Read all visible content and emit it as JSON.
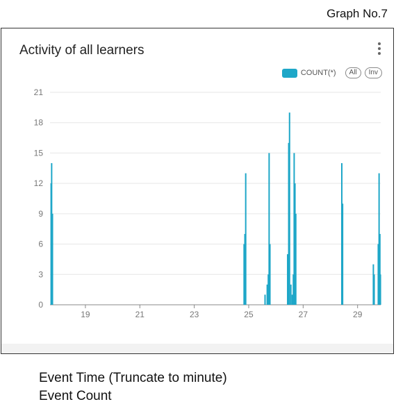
{
  "graph_number": "Graph No.7",
  "panel": {
    "title": "Activity of all learners"
  },
  "legend": {
    "series_label": "COUNT(*)",
    "all_label": "All",
    "inv_label": "Inv"
  },
  "caption": {
    "line1": "Event Time (Truncate to minute)",
    "line2": "Event Count"
  },
  "colors": {
    "bar": "#1ea7c8",
    "grid": "#e6e6e6",
    "axis": "#888888",
    "tick_text": "#777777"
  },
  "chart_data": {
    "type": "bar",
    "title": "Activity of all learners",
    "xlabel": "",
    "ylabel": "",
    "xlim": [
      17.7,
      29.85
    ],
    "ylim": [
      0,
      21
    ],
    "yticks": [
      0,
      3,
      6,
      9,
      12,
      15,
      18,
      21
    ],
    "xticks": [
      19,
      21,
      23,
      25,
      27,
      29
    ],
    "grid": true,
    "legend_position": "top-right",
    "series": [
      {
        "name": "COUNT(*)",
        "points": [
          [
            17.74,
            12
          ],
          [
            17.76,
            14
          ],
          [
            17.79,
            9
          ],
          [
            24.83,
            6
          ],
          [
            24.86,
            7
          ],
          [
            24.89,
            13
          ],
          [
            25.6,
            1
          ],
          [
            25.68,
            2
          ],
          [
            25.72,
            3
          ],
          [
            25.75,
            15
          ],
          [
            25.78,
            6
          ],
          [
            26.43,
            5
          ],
          [
            26.47,
            16
          ],
          [
            26.5,
            19
          ],
          [
            26.55,
            2
          ],
          [
            26.6,
            1
          ],
          [
            26.64,
            3
          ],
          [
            26.67,
            15
          ],
          [
            26.7,
            12
          ],
          [
            26.73,
            9
          ],
          [
            28.42,
            14
          ],
          [
            28.45,
            10
          ],
          [
            29.58,
            4
          ],
          [
            29.61,
            3
          ],
          [
            29.76,
            6
          ],
          [
            29.79,
            13
          ],
          [
            29.82,
            7
          ],
          [
            29.84,
            3
          ]
        ]
      }
    ]
  }
}
